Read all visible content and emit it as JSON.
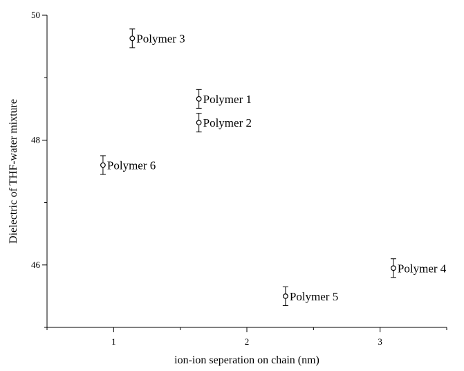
{
  "chart_data": {
    "type": "scatter",
    "title": "",
    "xlabel": "ion-ion seperation on chain (nm)",
    "ylabel": "Dielectric of THF-water mixture",
    "xlim": [
      0.5,
      3.5
    ],
    "ylim": [
      45.0,
      50.0
    ],
    "xticks": [
      1,
      2,
      3
    ],
    "xticklabels": [
      "1",
      "2",
      "3"
    ],
    "yticks": [
      46,
      48,
      50
    ],
    "yticklabels": [
      "46",
      "48",
      "50"
    ],
    "grid": false,
    "legend": "none",
    "marker": "open-circle",
    "color": "#000000",
    "points": [
      {
        "label": "Polymer 1",
        "x": 1.64,
        "y": 48.66,
        "err": 0.15
      },
      {
        "label": "Polymer 2",
        "x": 1.64,
        "y": 48.28,
        "err": 0.15
      },
      {
        "label": "Polymer 3",
        "x": 1.14,
        "y": 49.63,
        "err": 0.15
      },
      {
        "label": "Polymer 4",
        "x": 3.1,
        "y": 45.95,
        "err": 0.15
      },
      {
        "label": "Polymer 5",
        "x": 2.29,
        "y": 45.5,
        "err": 0.15
      },
      {
        "label": "Polymer 6",
        "x": 0.92,
        "y": 47.6,
        "err": 0.15
      }
    ]
  }
}
